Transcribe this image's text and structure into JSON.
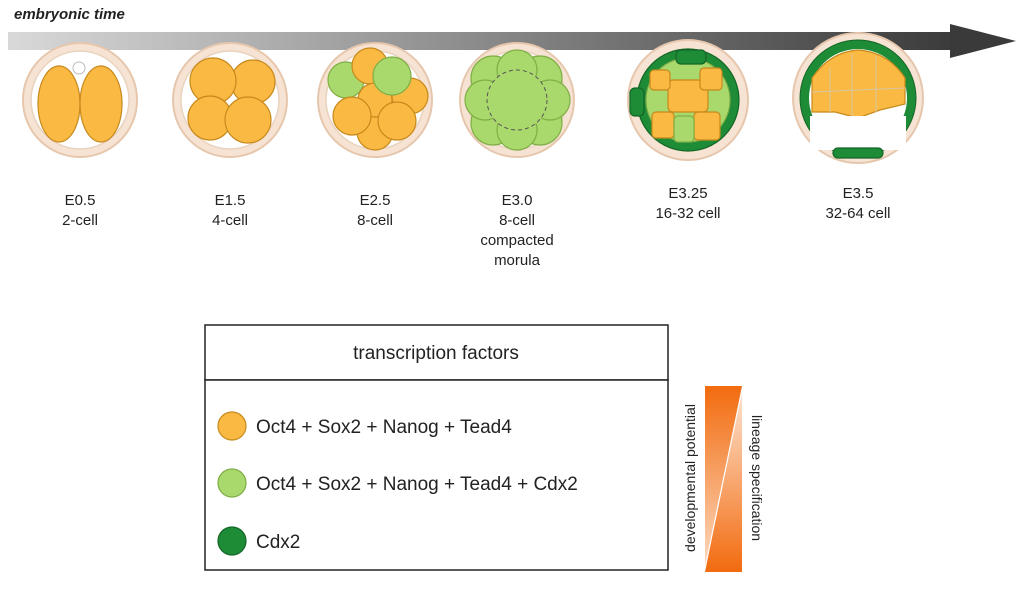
{
  "header": {
    "title": "embryonic time"
  },
  "stages": [
    {
      "day": "E0.5",
      "lines": [
        "2-cell"
      ]
    },
    {
      "day": "E1.5",
      "lines": [
        "4-cell"
      ]
    },
    {
      "day": "E2.5",
      "lines": [
        "8-cell"
      ]
    },
    {
      "day": "E3.0",
      "lines": [
        "8-cell",
        "compacted",
        "morula"
      ]
    },
    {
      "day": "E3.25",
      "lines": [
        "16-32 cell"
      ]
    },
    {
      "day": "E3.5",
      "lines": [
        "32-64 cell"
      ]
    }
  ],
  "legend": {
    "title": "transcription factors",
    "items": [
      "Oct4 + Sox2 + Nanog + Tead4",
      "Oct4 + Sox2 + Nanog + Tead4 + Cdx2",
      "Cdx2"
    ]
  },
  "gradients": {
    "left": "developmental potential",
    "right": "lineage specification"
  }
}
